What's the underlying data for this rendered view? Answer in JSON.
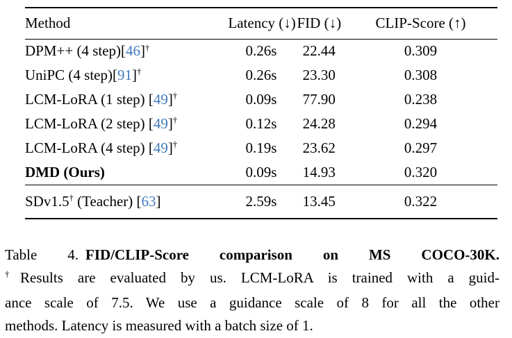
{
  "colors": {
    "background": "#ffffff",
    "text": "#000000",
    "citation": "#4279bd"
  },
  "table": {
    "headers": {
      "method": "Method",
      "latency": "Latency (↓)",
      "fid": "FID (↓)",
      "clip": "CLIP-Score (↑)"
    },
    "rows": [
      {
        "method": [
          {
            "text": "DPM++ (4 step)["
          },
          {
            "text": "46",
            "style": "cite"
          },
          {
            "text": "]"
          },
          {
            "text": "†",
            "style": "sup"
          }
        ],
        "latency": "0.26s",
        "fid": "22.44",
        "clip": "0.309"
      },
      {
        "method": [
          {
            "text": "UniPC (4 step)["
          },
          {
            "text": "91",
            "style": "cite"
          },
          {
            "text": "]"
          },
          {
            "text": "†",
            "style": "sup"
          }
        ],
        "latency": "0.26s",
        "fid": "23.30",
        "clip": "0.308"
      },
      {
        "method": [
          {
            "text": "LCM-LoRA (1 step) ["
          },
          {
            "text": "49",
            "style": "cite"
          },
          {
            "text": "]"
          },
          {
            "text": "†",
            "style": "sup"
          }
        ],
        "latency": "0.09s",
        "fid": "77.90",
        "clip": "0.238"
      },
      {
        "method": [
          {
            "text": "LCM-LoRA (2 step) ["
          },
          {
            "text": "49",
            "style": "cite"
          },
          {
            "text": "]"
          },
          {
            "text": "†",
            "style": "sup"
          }
        ],
        "latency": "0.12s",
        "fid": "24.28",
        "clip": "0.294"
      },
      {
        "method": [
          {
            "text": "LCM-LoRA (4 step) ["
          },
          {
            "text": "49",
            "style": "cite"
          },
          {
            "text": "]"
          },
          {
            "text": "†",
            "style": "sup"
          }
        ],
        "latency": "0.19s",
        "fid": "23.62",
        "clip": "0.297"
      },
      {
        "method": [
          {
            "text": "DMD (Ours)",
            "style": "bold"
          }
        ],
        "latency": "0.09s",
        "fid": "14.93",
        "clip": "0.320",
        "bold_fid": true,
        "bold_clip": true,
        "rule_below": true
      },
      {
        "method": [
          {
            "text": "SDv1.5"
          },
          {
            "text": "†",
            "style": "sup"
          },
          {
            "text": " (Teacher) ["
          },
          {
            "text": "63",
            "style": "cite"
          },
          {
            "text": "]"
          }
        ],
        "latency": "2.59s",
        "fid": "13.45",
        "clip": "0.322",
        "teacher": true
      }
    ]
  },
  "caption": {
    "label": "Table 4.",
    "title": "FID/CLIP-Score comparison on MS COCO-30K.",
    "dagger": "†",
    "line2": "Results are evaluated by us. LCM-LoRA is trained with a guid-",
    "line3": "ance scale of 7.5. We use a guidance scale of 8 for all the other",
    "line4": "methods. Latency is measured with a batch size of 1."
  }
}
